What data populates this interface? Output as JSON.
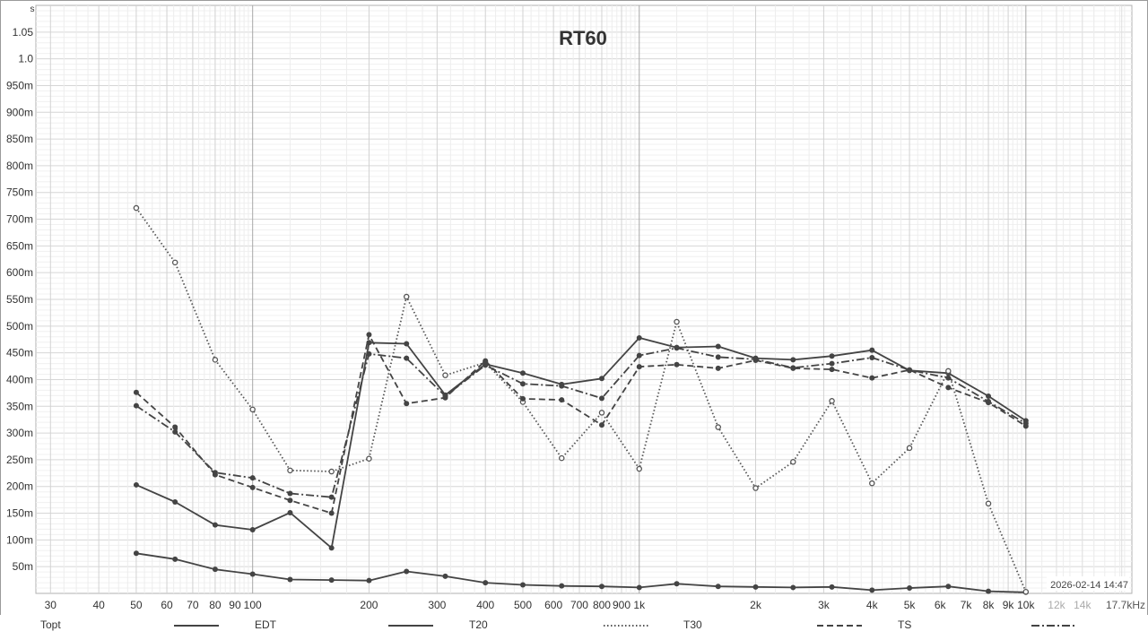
{
  "chart_data": {
    "type": "line",
    "title": "RT60",
    "ylabel": "s",
    "xlabel": "",
    "x_scale": "log",
    "xlim": [
      27.5,
      18800
    ],
    "ylim": [
      0,
      1.1
    ],
    "grid": true,
    "x_major_ticks": [
      {
        "v": 30,
        "label": "30"
      },
      {
        "v": 40,
        "label": "40"
      },
      {
        "v": 50,
        "label": "50"
      },
      {
        "v": 60,
        "label": "60"
      },
      {
        "v": 70,
        "label": "70"
      },
      {
        "v": 80,
        "label": "80"
      },
      {
        "v": 90,
        "label": "90"
      },
      {
        "v": 100,
        "label": "100"
      },
      {
        "v": 200,
        "label": "200"
      },
      {
        "v": 300,
        "label": "300"
      },
      {
        "v": 400,
        "label": "400"
      },
      {
        "v": 500,
        "label": "500"
      },
      {
        "v": 600,
        "label": "600"
      },
      {
        "v": 700,
        "label": "700"
      },
      {
        "v": 800,
        "label": "800"
      },
      {
        "v": 900,
        "label": "900"
      },
      {
        "v": 1000,
        "label": "1k"
      },
      {
        "v": 2000,
        "label": "2k"
      },
      {
        "v": 3000,
        "label": "3k"
      },
      {
        "v": 4000,
        "label": "4k"
      },
      {
        "v": 5000,
        "label": "5k"
      },
      {
        "v": 6000,
        "label": "6k"
      },
      {
        "v": 7000,
        "label": "7k"
      },
      {
        "v": 8000,
        "label": "8k"
      },
      {
        "v": 9000,
        "label": "9k"
      },
      {
        "v": 10000,
        "label": "10k"
      }
    ],
    "x_faded_ticks": [
      {
        "v": 12000,
        "label": "12k"
      },
      {
        "v": 14000,
        "label": "14k"
      },
      {
        "v": 17700,
        "label": "17.7kHz"
      }
    ],
    "y_ticks": [
      {
        "v": 0.05,
        "label": "50m"
      },
      {
        "v": 0.1,
        "label": "100m"
      },
      {
        "v": 0.15,
        "label": "150m"
      },
      {
        "v": 0.2,
        "label": "200m"
      },
      {
        "v": 0.25,
        "label": "250m"
      },
      {
        "v": 0.3,
        "label": "300m"
      },
      {
        "v": 0.35,
        "label": "350m"
      },
      {
        "v": 0.4,
        "label": "400m"
      },
      {
        "v": 0.45,
        "label": "450m"
      },
      {
        "v": 0.5,
        "label": "500m"
      },
      {
        "v": 0.55,
        "label": "550m"
      },
      {
        "v": 0.6,
        "label": "600m"
      },
      {
        "v": 0.65,
        "label": "650m"
      },
      {
        "v": 0.7,
        "label": "700m"
      },
      {
        "v": 0.75,
        "label": "750m"
      },
      {
        "v": 0.8,
        "label": "800m"
      },
      {
        "v": 0.85,
        "label": "850m"
      },
      {
        "v": 0.9,
        "label": "900m"
      },
      {
        "v": 0.95,
        "label": "950m"
      },
      {
        "v": 1.0,
        "label": "1.0"
      },
      {
        "v": 1.05,
        "label": "1.05"
      }
    ],
    "x": [
      50,
      63,
      80,
      100,
      125,
      160,
      200,
      250,
      315,
      400,
      500,
      630,
      800,
      1000,
      1250,
      1600,
      2000,
      2500,
      3150,
      4000,
      5000,
      6300,
      8000,
      10000
    ],
    "series": [
      {
        "name": "Topt",
        "dash": "solid",
        "marker": "filled",
        "color": "#444444",
        "values": [
          0.075,
          0.064,
          0.045,
          0.036,
          0.026,
          0.025,
          0.024,
          0.041,
          0.032,
          0.02,
          0.016,
          0.014,
          0.013,
          0.011,
          0.018,
          0.013,
          0.012,
          0.011,
          0.012,
          0.006,
          0.01,
          0.013,
          0.004,
          0.002
        ]
      },
      {
        "name": "EDT",
        "dash": "solid",
        "marker": "filled",
        "color": "#444444",
        "values": [
          0.203,
          0.171,
          0.128,
          0.119,
          0.151,
          0.085,
          0.469,
          0.467,
          0.371,
          0.429,
          0.412,
          0.391,
          0.402,
          0.478,
          0.46,
          0.462,
          0.44,
          0.437,
          0.444,
          0.455,
          0.417,
          0.412,
          0.369,
          0.323
        ]
      },
      {
        "name": "T20",
        "dash": "dotted",
        "marker": "open",
        "color": "#555555",
        "values": [
          0.721,
          0.619,
          0.437,
          0.344,
          0.23,
          0.228,
          0.252,
          0.555,
          0.408,
          0.432,
          0.358,
          0.253,
          0.338,
          0.233,
          0.508,
          0.311,
          0.197,
          0.246,
          0.36,
          0.206,
          0.272,
          0.416,
          0.168,
          0.003
        ]
      },
      {
        "name": "T30",
        "dash": "dashed",
        "marker": "filled",
        "color": "#444444",
        "values": [
          0.376,
          0.311,
          0.222,
          0.198,
          0.174,
          0.15,
          0.484,
          0.355,
          0.366,
          0.435,
          0.364,
          0.362,
          0.315,
          0.424,
          0.428,
          0.421,
          0.436,
          0.421,
          0.419,
          0.403,
          0.418,
          0.385,
          0.357,
          0.313
        ]
      },
      {
        "name": "TS",
        "dash": "dashdot",
        "marker": "filled",
        "color": "#444444",
        "values": [
          0.351,
          0.302,
          0.226,
          0.216,
          0.187,
          0.18,
          0.448,
          0.44,
          0.369,
          0.427,
          0.392,
          0.388,
          0.365,
          0.445,
          0.459,
          0.442,
          0.438,
          0.422,
          0.43,
          0.441,
          0.418,
          0.403,
          0.359,
          0.318
        ]
      }
    ],
    "timestamp": "2026-02-14 14:47",
    "legend_placement": "bottom"
  }
}
